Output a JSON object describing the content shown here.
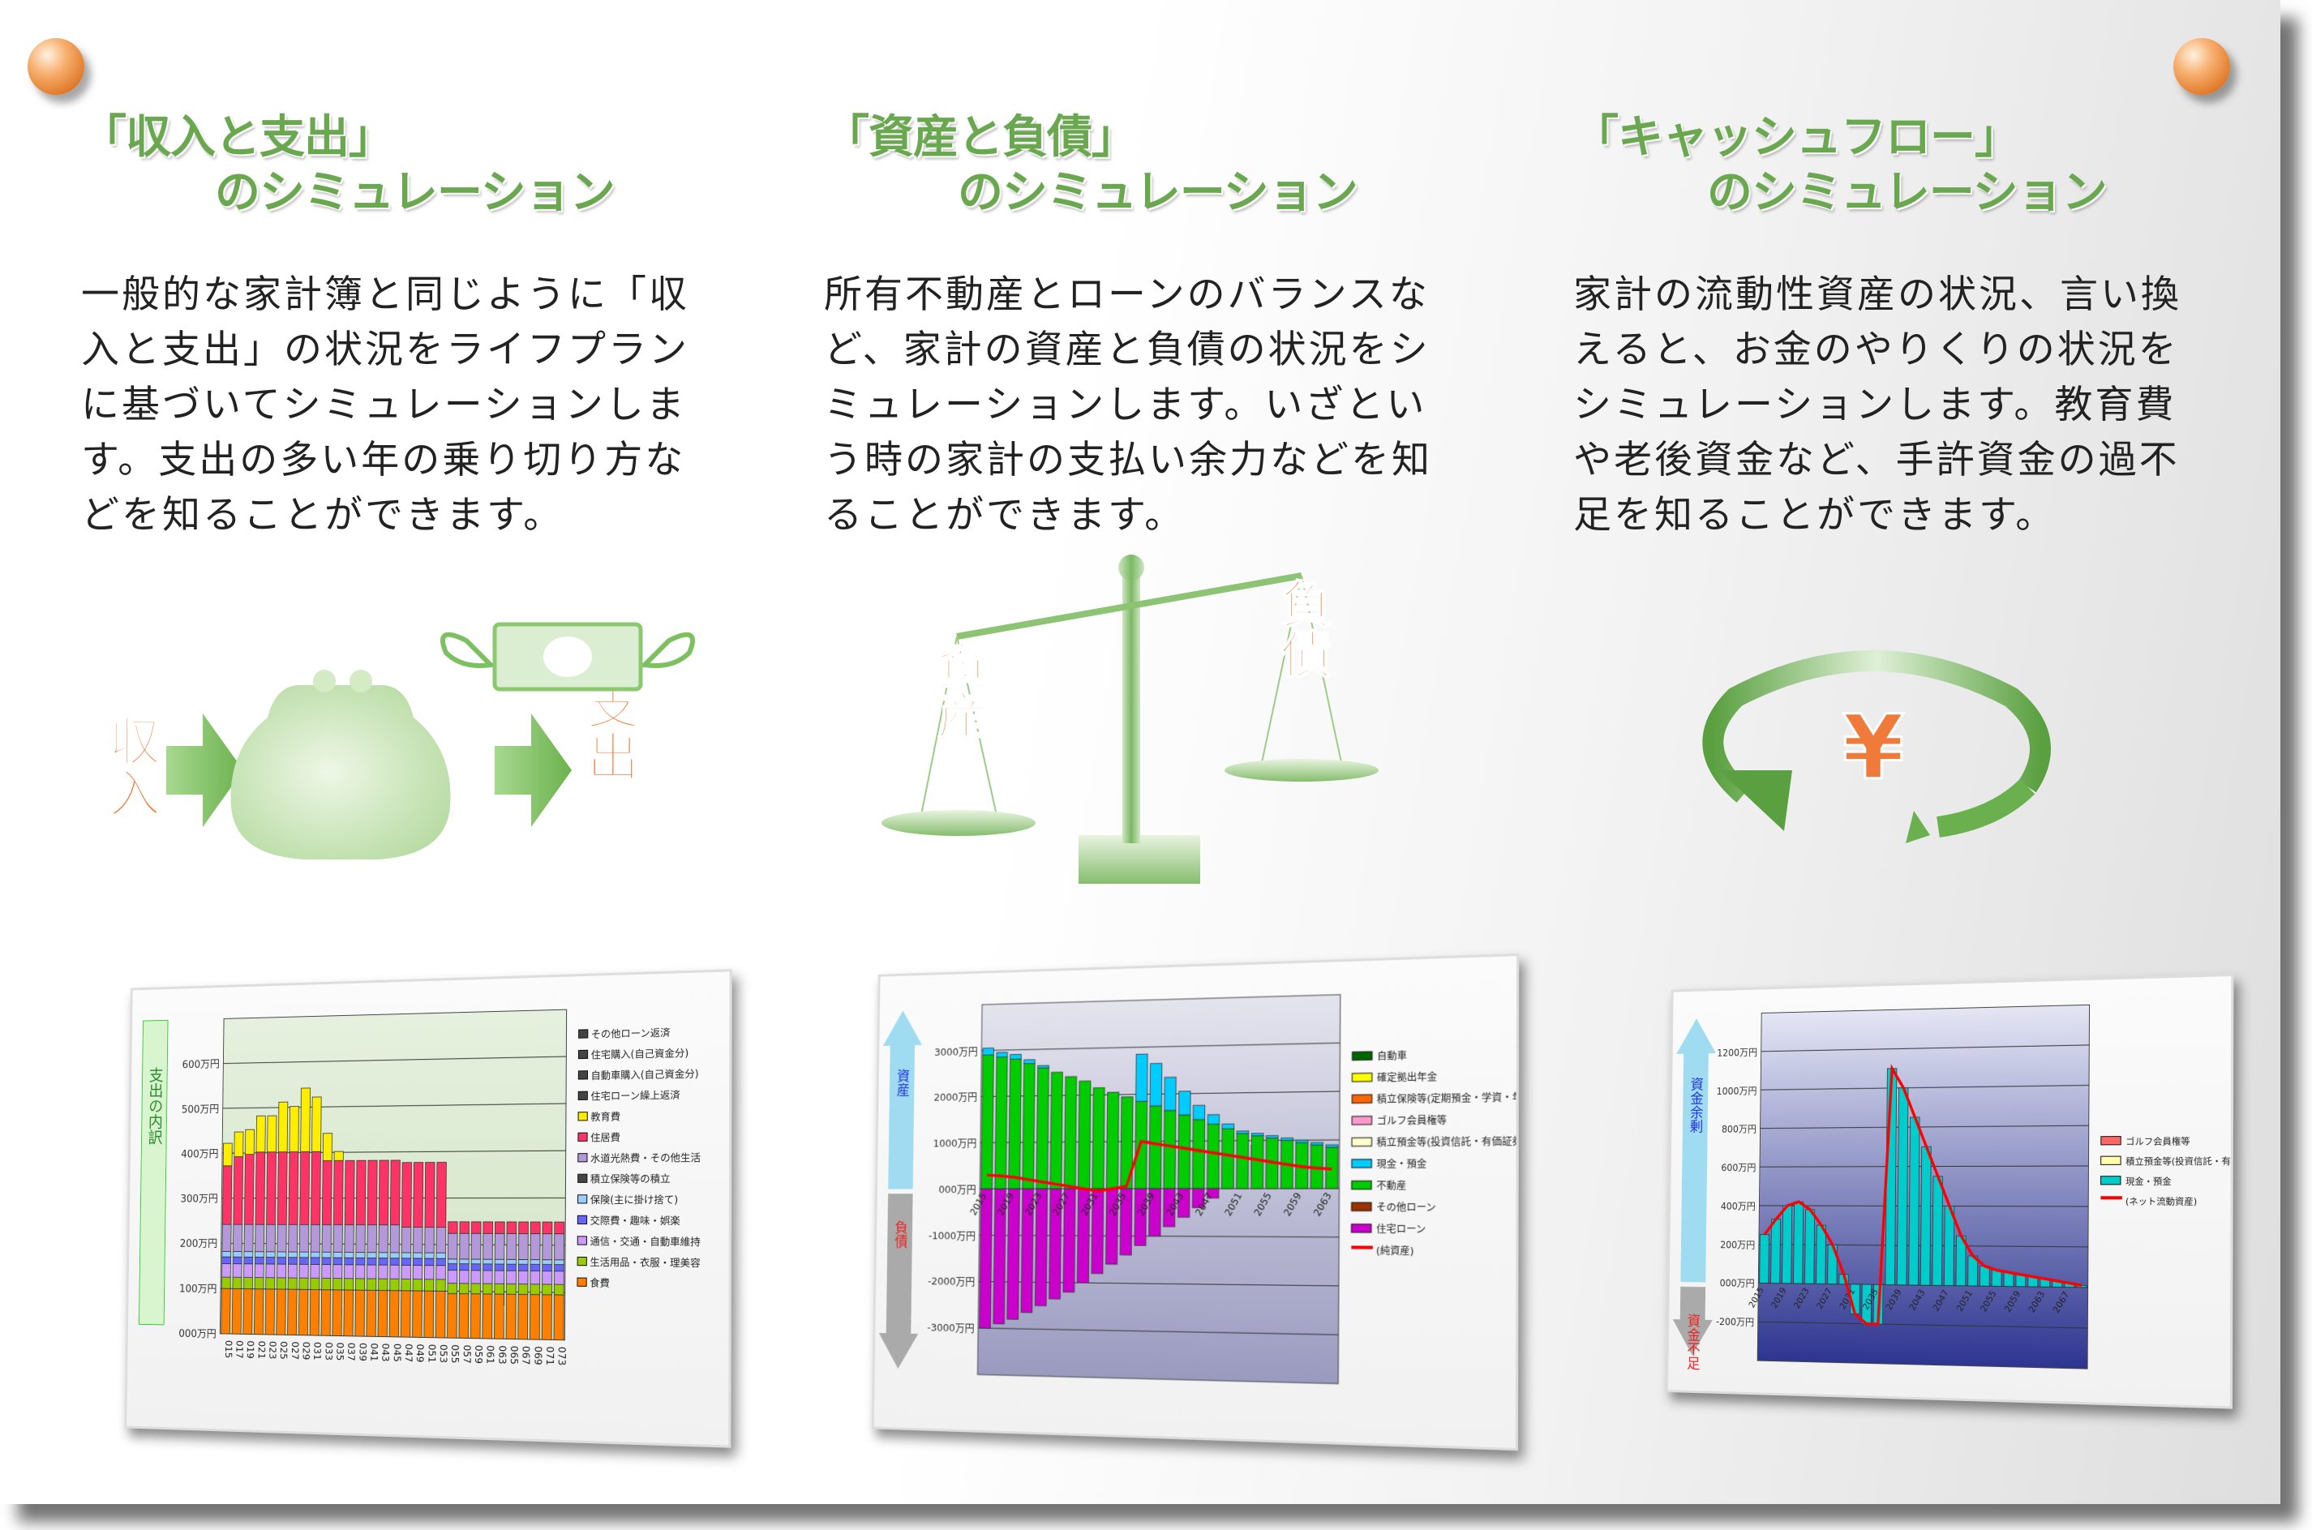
{
  "columns": [
    {
      "title_line1": "「収入と支出」",
      "title_line2": "のシミュレーション",
      "body": "一般的な家計簿と同じように「収入と支出」の状況をライフプランに基づいてシミュレーションします。支出の多い年の乗り切り方などを知ることができます。",
      "illustration": {
        "left_label": "収入",
        "right_label": "支出",
        "icons": [
          "income-text",
          "arrow-right-icon",
          "coin-purse-icon",
          "flying-money-icon",
          "expense-text"
        ]
      }
    },
    {
      "title_line1": "「資産と負債」",
      "title_line2": "のシミュレーション",
      "body": "所有不動産とローンのバランスなど、家計の資産と負債の状況をシミュレーションします。いざという時の家計の支払い余力などを知ることができます。",
      "illustration": {
        "left_label": "資産",
        "right_label": "負債",
        "icons": [
          "balance-scale-icon"
        ]
      }
    },
    {
      "title_line1": "「キャッシュフロー」",
      "title_line2": "のシミュレーション",
      "body": "家計の流動性資産の状況、言い換えると、お金のやりくりの状況をシミュレーションします。教育費や老後資金など、手許資金の過不足を知ることができます。",
      "illustration": {
        "symbol": "¥",
        "icons": [
          "circular-arrow-icon",
          "yen-icon"
        ]
      }
    }
  ],
  "colors": {
    "accent_green": "#6aa84f",
    "illustration_orange": "#f07a3a",
    "pin_orange": "#e07a2a"
  },
  "chart_data": [
    {
      "type": "bar",
      "stacked": true,
      "side_label": "支出の内訳",
      "ylim": [
        0,
        700
      ],
      "yticks": [
        "000万円",
        "100万円",
        "200万円",
        "300万円",
        "400万円",
        "500万円",
        "600万円"
      ],
      "x": [
        "015",
        "017",
        "019",
        "021",
        "023",
        "025",
        "027",
        "029",
        "031",
        "033",
        "035",
        "037",
        "039",
        "041",
        "043",
        "045",
        "047",
        "049",
        "051",
        "053",
        "055",
        "057",
        "059",
        "061",
        "063",
        "065",
        "067",
        "069",
        "071",
        "073"
      ],
      "legend": [
        "その他ローン返済",
        "住宅購入(自己資金分)",
        "自動車購入(自己資金分)",
        "住宅ローン繰上返済",
        "教育費",
        "住居費",
        "水道光熱費・その他生活",
        "積立保険等の積立",
        "保険(主に掛け捨て)",
        "交際費・趣味・娯楽",
        "通信・交通・自動車維持",
        "生活用品・衣服・理美容",
        "食費"
      ],
      "series": [
        {
          "name": "食費",
          "color": "#ff8000",
          "values": [
            100,
            100,
            100,
            100,
            100,
            100,
            100,
            100,
            100,
            100,
            100,
            100,
            100,
            100,
            100,
            100,
            100,
            100,
            100,
            100,
            95,
            95,
            95,
            95,
            95,
            95,
            95,
            95,
            95,
            95
          ]
        },
        {
          "name": "生活用品・衣服・理美容",
          "color": "#99cc00",
          "values": [
            25,
            25,
            25,
            25,
            25,
            25,
            25,
            25,
            25,
            25,
            25,
            25,
            25,
            25,
            25,
            25,
            25,
            25,
            25,
            25,
            22,
            22,
            22,
            22,
            22,
            22,
            22,
            22,
            22,
            22
          ]
        },
        {
          "name": "通信・交通・自動車維持",
          "color": "#cc99ff",
          "values": [
            30,
            30,
            30,
            30,
            30,
            30,
            30,
            30,
            30,
            30,
            30,
            30,
            30,
            30,
            30,
            30,
            30,
            30,
            30,
            30,
            28,
            28,
            28,
            28,
            28,
            28,
            28,
            28,
            28,
            28
          ]
        },
        {
          "name": "交際費・趣味・娯楽",
          "color": "#6666ff",
          "values": [
            15,
            15,
            15,
            15,
            15,
            15,
            15,
            15,
            15,
            15,
            15,
            15,
            15,
            15,
            15,
            15,
            15,
            15,
            15,
            15,
            14,
            14,
            14,
            14,
            14,
            14,
            14,
            14,
            14,
            14
          ]
        },
        {
          "name": "保険(主に掛け捨て)",
          "color": "#99ccff",
          "values": [
            12,
            12,
            12,
            12,
            12,
            12,
            12,
            12,
            12,
            12,
            12,
            12,
            12,
            12,
            12,
            12,
            12,
            12,
            12,
            12,
            10,
            10,
            10,
            10,
            10,
            10,
            10,
            10,
            10,
            10
          ]
        },
        {
          "name": "水道光熱費・その他生活",
          "color": "#b399d9",
          "values": [
            60,
            60,
            60,
            60,
            60,
            60,
            60,
            60,
            60,
            60,
            60,
            60,
            60,
            60,
            60,
            60,
            55,
            55,
            55,
            55,
            55,
            55,
            55,
            55,
            55,
            55,
            55,
            55,
            55,
            55
          ]
        },
        {
          "name": "住居費",
          "color": "#ff3366",
          "values": [
            130,
            150,
            155,
            160,
            160,
            160,
            160,
            160,
            160,
            140,
            140,
            140,
            140,
            140,
            140,
            140,
            140,
            140,
            140,
            140,
            25,
            25,
            25,
            25,
            25,
            25,
            25,
            25,
            25,
            25
          ]
        },
        {
          "name": "教育費",
          "color": "#ffee00",
          "values": [
            50,
            55,
            55,
            80,
            80,
            110,
            100,
            140,
            120,
            60,
            20,
            0,
            0,
            0,
            0,
            0,
            0,
            0,
            0,
            0,
            0,
            0,
            0,
            0,
            0,
            0,
            0,
            0,
            0,
            0
          ]
        }
      ]
    },
    {
      "type": "bar",
      "stacked": true,
      "side_label_top": "資産",
      "side_label_bottom": "負債",
      "ylim": [
        -4000,
        4000
      ],
      "yticks": [
        "-3000万円",
        "-2000万円",
        "-1000万円",
        "000万円",
        "1000万円",
        "2000万円",
        "3000万円"
      ],
      "x": [
        "2015",
        "2017",
        "2019",
        "2021",
        "2023",
        "2025",
        "2027",
        "2029",
        "2031",
        "2033",
        "2035",
        "2037",
        "2039",
        "2041",
        "2043",
        "2045",
        "2047",
        "2049",
        "2051",
        "2053",
        "2055",
        "2057",
        "2059",
        "2061",
        "2063"
      ],
      "legend": [
        "自動車",
        "確定拠出年金",
        "積立保険等(定期預金・学資・年金)",
        "ゴルフ会員権等",
        "積立預金等(投資信託・有価証券・外貨預金等)",
        "現金・預金",
        "不動産",
        "その他ローン",
        "住宅ローン",
        "(純資産)"
      ],
      "legend_colors": [
        "#006600",
        "#ffff00",
        "#ff6600",
        "#ff99cc",
        "#ffffcc",
        "#00ccff",
        "#00cc00",
        "#993300",
        "#cc00cc",
        "#ff0000"
      ],
      "series": [
        {
          "name": "不動産",
          "color": "#00cc00",
          "values": [
            2900,
            2850,
            2800,
            2700,
            2600,
            2500,
            2400,
            2300,
            2150,
            2050,
            1950,
            1850,
            1750,
            1650,
            1550,
            1450,
            1350,
            1250,
            1150,
            1100,
            1050,
            1000,
            950,
            900,
            850
          ]
        },
        {
          "name": "現金・預金",
          "color": "#00ccff",
          "values": [
            150,
            100,
            100,
            80,
            50,
            0,
            0,
            0,
            0,
            0,
            0,
            1000,
            900,
            700,
            500,
            300,
            200,
            100,
            50,
            50,
            50,
            50,
            50,
            50,
            50
          ]
        },
        {
          "name": "住宅ローン",
          "color": "#cc00cc",
          "values": [
            -3000,
            -2900,
            -2800,
            -2650,
            -2500,
            -2350,
            -2200,
            -2000,
            -1800,
            -1600,
            -1400,
            -1200,
            -1000,
            -800,
            -600,
            -400,
            -200,
            0,
            0,
            0,
            0,
            0,
            0,
            0,
            0
          ]
        }
      ],
      "line": {
        "name": "(純資産)",
        "color": "#ff0000",
        "values": [
          300,
          280,
          250,
          200,
          150,
          100,
          50,
          0,
          -50,
          0,
          50,
          1000,
          950,
          900,
          850,
          800,
          750,
          700,
          650,
          600,
          550,
          500,
          450,
          420,
          400
        ]
      }
    },
    {
      "type": "bar",
      "side_label_top": "資金余剰",
      "side_label_bottom": "資金不足",
      "ylim": [
        -400,
        1400
      ],
      "yticks": [
        "-200万円",
        "000万円",
        "200万円",
        "400万円",
        "600万円",
        "800万円",
        "1000万円",
        "1200万円"
      ],
      "x": [
        "2015",
        "2017",
        "2019",
        "2021",
        "2023",
        "2025",
        "2027",
        "2029",
        "2031",
        "2033",
        "2035",
        "2037",
        "2039",
        "2041",
        "2043",
        "2045",
        "2047",
        "2049",
        "2051",
        "2053",
        "2055",
        "2057",
        "2059",
        "2061",
        "2063",
        "2065",
        "2067",
        "2069"
      ],
      "legend": [
        "ゴルフ会員権等",
        "積立預金等(投資信託・有価証券・外貨預金等)",
        "現金・預金",
        "(ネット流動資産)"
      ],
      "legend_colors": [
        "#ff6666",
        "#ffffaa",
        "#00cccc",
        "#ff0000"
      ],
      "series": [
        {
          "name": "現金・預金",
          "color": "#00cccc",
          "values": [
            250,
            330,
            400,
            420,
            380,
            300,
            200,
            50,
            -150,
            -200,
            -200,
            1100,
            1000,
            850,
            700,
            550,
            400,
            250,
            150,
            100,
            80,
            70,
            60,
            50,
            40,
            30,
            20,
            10
          ]
        }
      ],
      "line": {
        "name": "(ネット流動資産)",
        "color": "#ff0000",
        "values": [
          250,
          330,
          400,
          420,
          380,
          300,
          200,
          50,
          -150,
          -200,
          -200,
          1100,
          1000,
          850,
          700,
          550,
          400,
          250,
          150,
          100,
          80,
          70,
          60,
          50,
          40,
          30,
          20,
          10
        ]
      }
    }
  ]
}
